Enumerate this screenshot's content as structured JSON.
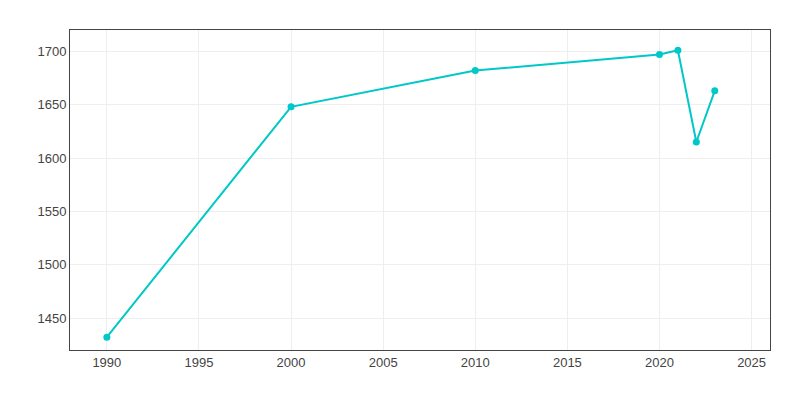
{
  "chart_data": {
    "type": "line",
    "x": [
      1990,
      2000,
      2010,
      2020,
      2021,
      2022,
      2023
    ],
    "values": [
      1432,
      1648,
      1682,
      1697,
      1701,
      1615,
      1663
    ],
    "color": "#00C8C8",
    "marker": "circle",
    "xlim": [
      1988,
      2026
    ],
    "ylim": [
      1420,
      1720
    ],
    "xticks": [
      1990,
      1995,
      2000,
      2005,
      2010,
      2015,
      2020,
      2025
    ],
    "yticks": [
      1450,
      1500,
      1550,
      1600,
      1650,
      1700
    ],
    "grid": true
  }
}
